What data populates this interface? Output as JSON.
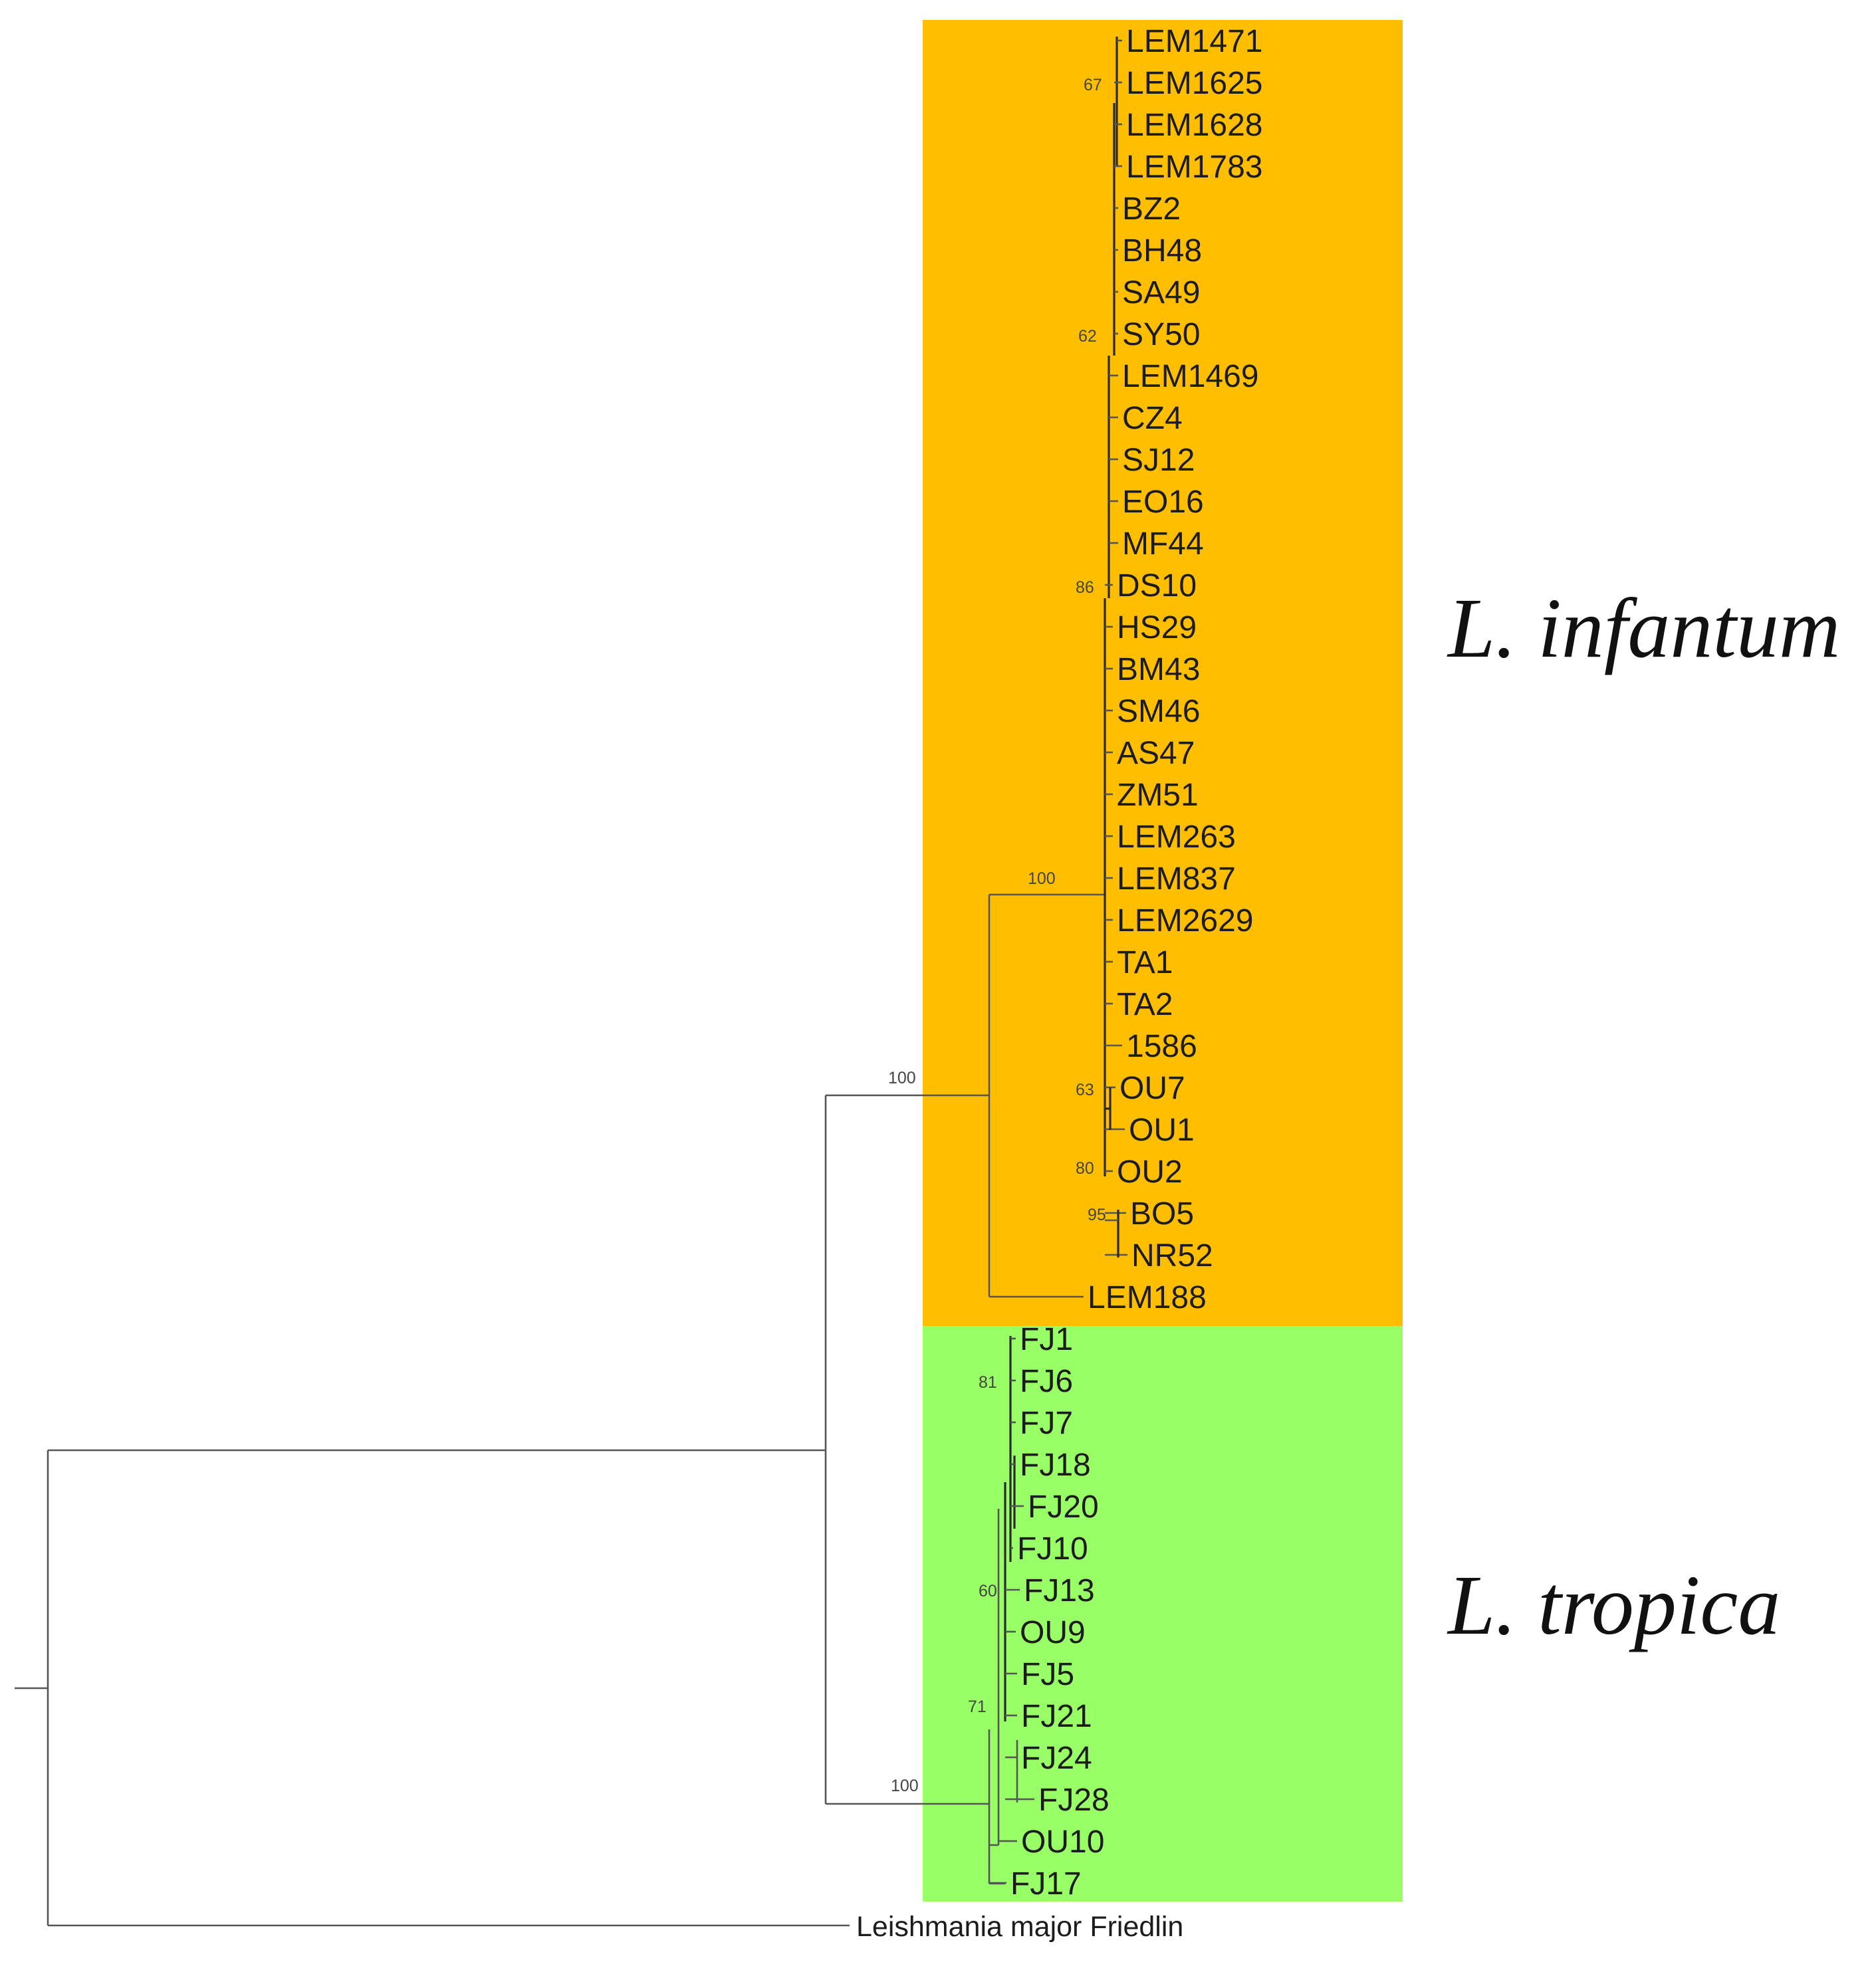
{
  "figure": {
    "clades": [
      {
        "name": "L. infantum",
        "color": "#FFBF00",
        "leaves": [
          "LEM1471",
          "LEM1625",
          "LEM1628",
          "LEM1783",
          "BZ2",
          "BH48",
          "SA49",
          "SY50",
          "LEM1469",
          "CZ4",
          "SJ12",
          "EO16",
          "MF44",
          "DS10",
          "HS29",
          "BM43",
          "SM46",
          "AS47",
          "ZM51",
          "LEM263",
          "LEM837",
          "LEM2629",
          "TA1",
          "TA2",
          "1586",
          "OU7",
          "OU1",
          "OU2",
          "BO5",
          "NR52",
          "LEM188"
        ]
      },
      {
        "name": "L. tropica",
        "color": "#99FF66",
        "leaves": [
          "FJ1",
          "FJ6",
          "FJ7",
          "FJ18",
          "FJ20",
          "FJ10",
          "FJ13",
          "OU9",
          "FJ5",
          "FJ21",
          "FJ24",
          "FJ28",
          "OU10",
          "FJ17"
        ]
      }
    ],
    "outgroup": "Leishmania major Friedlin",
    "bootstrap": {
      "LEM1625": "67",
      "SY50": "62",
      "DS10": "86",
      "infantum_inner": "100",
      "OU7": "63",
      "OU2": "80",
      "BO5": "95",
      "species_split": "100",
      "FJ6": "81",
      "FJ13": "60",
      "FJ21": "71",
      "tropica_crown": "100"
    }
  }
}
